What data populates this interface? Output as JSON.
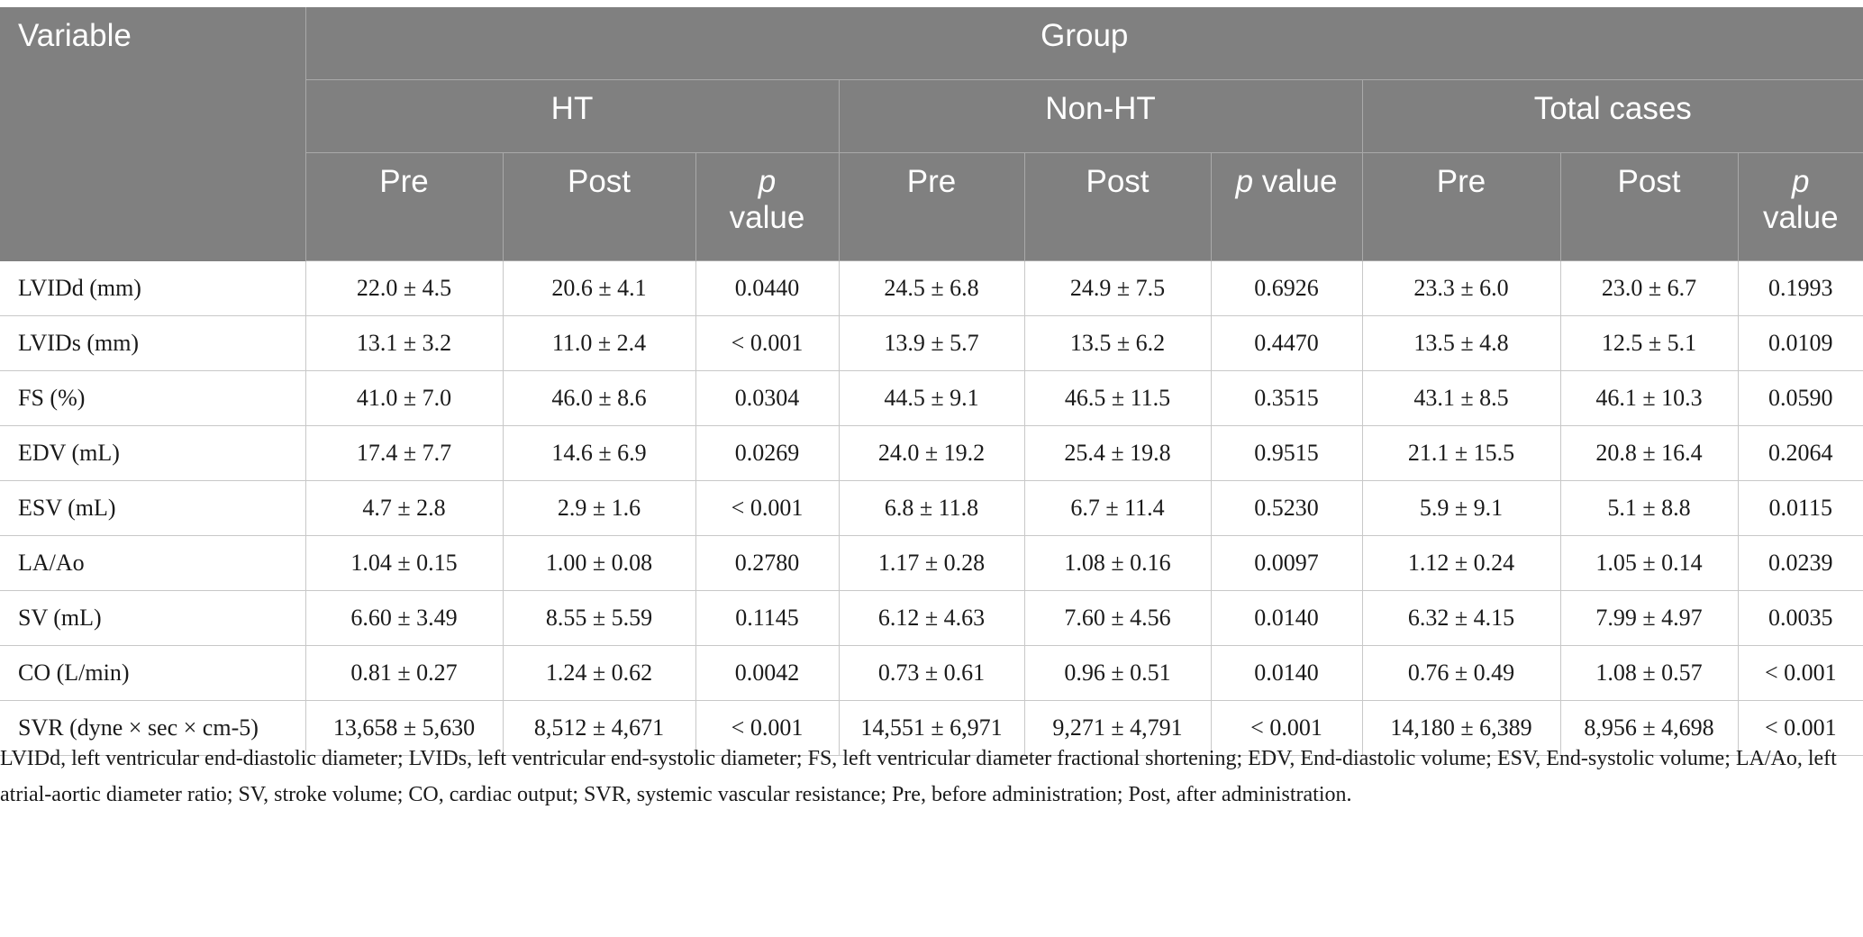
{
  "header": {
    "variable": "Variable",
    "group": "Group",
    "groups": [
      "HT",
      "Non-HT",
      "Total cases"
    ],
    "pre": "Pre",
    "post": "Post",
    "p_italic": "p",
    "p_value_word": "value"
  },
  "rows": [
    {
      "variable": "LVIDd (mm)",
      "values": [
        "22.0 ± 4.5",
        "20.6 ± 4.1",
        "0.0440",
        "24.5 ± 6.8",
        "24.9 ± 7.5",
        "0.6926",
        "23.3 ± 6.0",
        "23.0 ± 6.7",
        "0.1993"
      ]
    },
    {
      "variable": "LVIDs (mm)",
      "values": [
        "13.1 ± 3.2",
        "11.0 ± 2.4",
        "< 0.001",
        "13.9 ± 5.7",
        "13.5 ± 6.2",
        "0.4470",
        "13.5 ± 4.8",
        "12.5 ± 5.1",
        "0.0109"
      ]
    },
    {
      "variable": "FS (%)",
      "values": [
        "41.0 ± 7.0",
        "46.0 ± 8.6",
        "0.0304",
        "44.5 ± 9.1",
        "46.5 ± 11.5",
        "0.3515",
        "43.1 ± 8.5",
        "46.1 ± 10.3",
        "0.0590"
      ]
    },
    {
      "variable": "EDV (mL)",
      "values": [
        "17.4 ± 7.7",
        "14.6 ± 6.9",
        "0.0269",
        "24.0 ± 19.2",
        "25.4 ± 19.8",
        "0.9515",
        "21.1 ± 15.5",
        "20.8 ± 16.4",
        "0.2064"
      ]
    },
    {
      "variable": "ESV (mL)",
      "values": [
        "4.7 ± 2.8",
        "2.9 ± 1.6",
        "< 0.001",
        "6.8 ± 11.8",
        "6.7 ± 11.4",
        "0.5230",
        "5.9 ± 9.1",
        "5.1 ± 8.8",
        "0.0115"
      ]
    },
    {
      "variable": "LA/Ao",
      "values": [
        "1.04 ± 0.15",
        "1.00 ± 0.08",
        "0.2780",
        "1.17 ± 0.28",
        "1.08 ± 0.16",
        "0.0097",
        "1.12 ± 0.24",
        "1.05 ± 0.14",
        "0.0239"
      ]
    },
    {
      "variable": "SV (mL)",
      "values": [
        "6.60 ± 3.49",
        "8.55 ± 5.59",
        "0.1145",
        "6.12 ± 4.63",
        "7.60 ± 4.56",
        "0.0140",
        "6.32 ± 4.15",
        "7.99 ± 4.97",
        "0.0035"
      ]
    },
    {
      "variable": "CO (L/min)",
      "values": [
        "0.81 ± 0.27",
        "1.24 ± 0.62",
        "0.0042",
        "0.73 ± 0.61",
        "0.96 ± 0.51",
        "0.0140",
        "0.76 ± 0.49",
        "1.08 ± 0.57",
        "< 0.001"
      ]
    },
    {
      "variable": "SVR (dyne × sec × cm-5)",
      "values": [
        "13,658 ± 5,630",
        "8,512 ± 4,671",
        "< 0.001",
        "14,551 ± 6,971",
        "9,271 ± 4,791",
        "< 0.001",
        "14,180 ± 6,389",
        "8,956 ± 4,698",
        "< 0.001"
      ]
    }
  ],
  "footnote": "LVIDd, left ventricular end-diastolic diameter; LVIDs, left ventricular end-systolic diameter; FS, left ventricular diameter fractional shortening; EDV, End-diastolic volume; ESV, End-systolic volume; LA/Ao, left atrial-aortic diameter ratio; SV, stroke volume; CO, cardiac output; SVR, systemic vascular resistance; Pre, before administration; Post, after administration.",
  "colors": {
    "header_bg": "#808080",
    "header_text": "#ffffff",
    "grid_line": "#c8c8c8"
  }
}
